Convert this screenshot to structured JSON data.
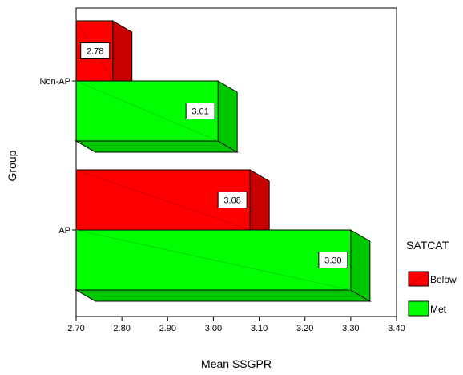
{
  "chart_data": {
    "type": "bar",
    "orientation": "horizontal",
    "style": "3d",
    "title": "",
    "xlabel": "Mean SSGPR",
    "ylabel": "Group",
    "xlim": [
      2.7,
      3.4
    ],
    "x_ticks": [
      "2.70",
      "2.80",
      "2.90",
      "3.00",
      "3.10",
      "3.20",
      "3.30",
      "3.40"
    ],
    "categories": [
      "Non-AP",
      "AP"
    ],
    "series": [
      {
        "name": "Below",
        "color": "#ff0000",
        "values": [
          2.78,
          3.08
        ],
        "labels": [
          "2.78",
          "3.08"
        ]
      },
      {
        "name": "Met",
        "color": "#00ff00",
        "values": [
          3.01,
          3.3
        ],
        "labels": [
          "3.01",
          "3.30"
        ]
      }
    ],
    "legend": {
      "title": "SATCAT",
      "position": "right",
      "entries": [
        "Below",
        "Met"
      ]
    },
    "grid": false
  }
}
